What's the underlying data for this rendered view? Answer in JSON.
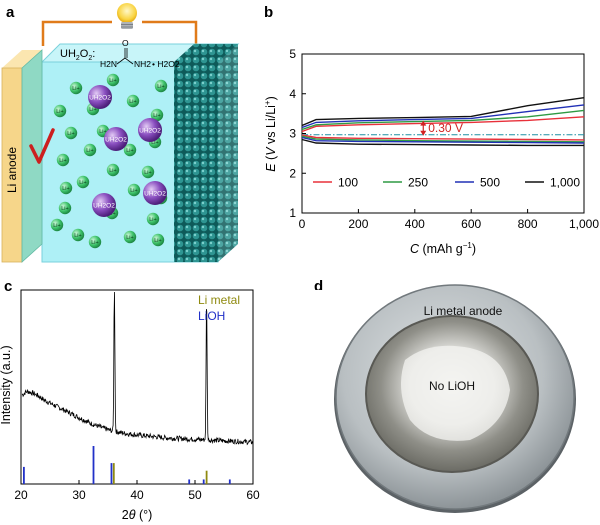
{
  "panel_a": {
    "letter": "a",
    "anode_label": "Li anode",
    "formula_label": "UH2O2:",
    "molecule_left": "H2N",
    "molecule_right": "NH2",
    "molecule_o": "O",
    "molecule_h2o2": "• H2O2",
    "li_ion_label": "Li+",
    "urea_label": "UH2O2",
    "check_color": "#cc1f1f",
    "anode_color": "#f6d68a",
    "electrolyte_color": "#aef0f6",
    "cathode_color": "#17706f",
    "li_ion_color": "#3ec46b",
    "urea_color": "#7e3fae"
  },
  "panel_b": {
    "letter": "b",
    "ylabel_parts": [
      "E",
      " (",
      "V",
      " vs Li/Li",
      "+",
      ")"
    ],
    "xlabel_parts": [
      "C",
      " (mAh g",
      "−1",
      ")"
    ],
    "annotation": "0.30 V",
    "annotation_color": "#d12222",
    "legend": [
      {
        "label": "100",
        "color": "#e8303a"
      },
      {
        "label": "250",
        "color": "#2f9a43"
      },
      {
        "label": "500",
        "color": "#2130b6"
      },
      {
        "label": "1,000",
        "color": "#111111"
      }
    ]
  },
  "panel_c": {
    "letter": "c",
    "ylabel": "Intensity (a.u.)",
    "xlabel_parts": [
      "2",
      "θ",
      " (°)"
    ],
    "legend": [
      {
        "label": "Li metal",
        "color": "#8f8a10"
      },
      {
        "label": "LiOH",
        "color": "#2231c8"
      }
    ]
  },
  "panel_d": {
    "letter": "d",
    "outer_label": "Li metal anode",
    "inner_label": "No LiOH"
  },
  "chart_data": [
    {
      "id": "b",
      "type": "line",
      "xlabel": "C (mAh g−1)",
      "ylabel": "E (V vs Li/Li+)",
      "xlim": [
        0,
        1000
      ],
      "ylim": [
        1,
        5
      ],
      "xticks": [
        0,
        200,
        400,
        600,
        800,
        1000
      ],
      "xtick_labels": [
        "0",
        "200",
        "400",
        "600",
        "800",
        "1,000"
      ],
      "yticks": [
        1,
        2,
        3,
        4,
        5
      ],
      "reference_line": 2.97,
      "annotation": {
        "text": "0.30 V",
        "x": 430,
        "from": 2.97,
        "to": 3.3
      },
      "legend_position": "bottom",
      "series": [
        {
          "name": "100",
          "color": "#e8303a",
          "charge": [
            [
              0,
              3.05
            ],
            [
              50,
              3.18
            ],
            [
              200,
              3.22
            ],
            [
              400,
              3.25
            ],
            [
              600,
              3.28
            ],
            [
              800,
              3.33
            ],
            [
              1000,
              3.42
            ]
          ],
          "discharge": [
            [
              0,
              2.96
            ],
            [
              50,
              2.9
            ],
            [
              200,
              2.88
            ],
            [
              400,
              2.87
            ],
            [
              600,
              2.86
            ],
            [
              800,
              2.85
            ],
            [
              1000,
              2.84
            ]
          ]
        },
        {
          "name": "250",
          "color": "#2f9a43",
          "charge": [
            [
              0,
              3.1
            ],
            [
              50,
              3.22
            ],
            [
              200,
              3.27
            ],
            [
              400,
              3.3
            ],
            [
              600,
              3.33
            ],
            [
              800,
              3.42
            ],
            [
              1000,
              3.58
            ]
          ],
          "discharge": [
            [
              0,
              2.93
            ],
            [
              50,
              2.86
            ],
            [
              200,
              2.84
            ],
            [
              400,
              2.82
            ],
            [
              600,
              2.81
            ],
            [
              800,
              2.8
            ],
            [
              1000,
              2.79
            ]
          ]
        },
        {
          "name": "500",
          "color": "#2130b6",
          "charge": [
            [
              0,
              3.15
            ],
            [
              50,
              3.28
            ],
            [
              200,
              3.32
            ],
            [
              400,
              3.35
            ],
            [
              600,
              3.38
            ],
            [
              800,
              3.55
            ],
            [
              1000,
              3.72
            ]
          ],
          "discharge": [
            [
              0,
              2.9
            ],
            [
              50,
              2.82
            ],
            [
              200,
              2.8
            ],
            [
              400,
              2.79
            ],
            [
              600,
              2.78
            ],
            [
              800,
              2.77
            ],
            [
              1000,
              2.76
            ]
          ]
        },
        {
          "name": "1,000",
          "color": "#111111",
          "charge": [
            [
              0,
              3.2
            ],
            [
              50,
              3.35
            ],
            [
              200,
              3.38
            ],
            [
              400,
              3.4
            ],
            [
              600,
              3.43
            ],
            [
              800,
              3.7
            ],
            [
              1000,
              3.9
            ]
          ],
          "discharge": [
            [
              0,
              2.85
            ],
            [
              50,
              2.76
            ],
            [
              200,
              2.73
            ],
            [
              400,
              2.72
            ],
            [
              600,
              2.71
            ],
            [
              800,
              2.7
            ],
            [
              1000,
              2.7
            ]
          ]
        }
      ]
    },
    {
      "id": "c",
      "type": "line",
      "xlabel": "2θ (°)",
      "ylabel": "Intensity (a.u.)",
      "xlim": [
        20,
        60
      ],
      "xticks": [
        20,
        30,
        40,
        50,
        60
      ],
      "pattern_profile": [
        [
          20,
          0.36
        ],
        [
          21,
          0.39
        ],
        [
          22,
          0.38
        ],
        [
          23,
          0.36
        ],
        [
          24,
          0.33
        ],
        [
          26,
          0.29
        ],
        [
          28,
          0.25
        ],
        [
          30,
          0.21
        ],
        [
          32,
          0.17
        ],
        [
          34,
          0.14
        ],
        [
          35.5,
          0.12
        ],
        [
          38,
          0.1
        ],
        [
          40,
          0.09
        ],
        [
          45,
          0.07
        ],
        [
          50,
          0.06
        ],
        [
          55,
          0.05
        ],
        [
          60,
          0.04
        ]
      ],
      "peaks": [
        {
          "x": 36.1,
          "height": 1.0
        },
        {
          "x": 52.0,
          "height": 1.0
        }
      ],
      "reference_lines": [
        {
          "name": "Li metal",
          "color": "#8f8a10",
          "positions": [
            36.0,
            52.0
          ],
          "heights": [
            0.55,
            0.35
          ]
        },
        {
          "name": "LiOH",
          "color": "#2231c8",
          "positions": [
            20.5,
            32.5,
            35.6,
            49.0,
            51.5,
            56.0
          ],
          "heights": [
            0.45,
            1.0,
            0.55,
            0.12,
            0.12,
            0.12
          ]
        }
      ]
    }
  ]
}
